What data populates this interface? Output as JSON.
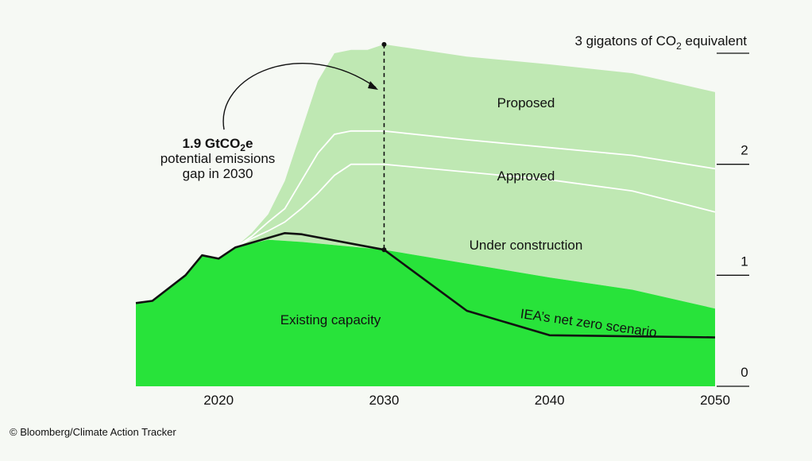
{
  "chart_data": {
    "type": "area",
    "unit_label_prefix": "3 gigatons of CO",
    "unit_label_sub": "2",
    "unit_label_suffix": " equivalent",
    "x_ticks": [
      2020,
      2030,
      2040,
      2050
    ],
    "y_ticks": [
      0,
      1,
      2,
      3
    ],
    "xlim": [
      2015,
      2050
    ],
    "ylim": [
      0,
      3
    ],
    "stack_labels": {
      "existing": "Existing capacity",
      "under_construction": "Under construction",
      "approved": "Approved",
      "proposed": "Proposed"
    },
    "series": [
      {
        "name": "Existing capacity",
        "x": [
          2015,
          2016,
          2018,
          2019,
          2020,
          2021,
          2023,
          2024,
          2025,
          2030,
          2040,
          2045,
          2050
        ],
        "y": [
          0.75,
          0.77,
          1.0,
          1.18,
          1.15,
          1.25,
          1.32,
          1.31,
          1.3,
          1.23,
          0.98,
          0.87,
          0.7
        ]
      },
      {
        "name": "Under construction (top of stack)",
        "x": [
          2020,
          2021,
          2022,
          2023,
          2024,
          2025,
          2026,
          2027,
          2028,
          2030,
          2040,
          2045,
          2050
        ],
        "y": [
          1.15,
          1.25,
          1.33,
          1.4,
          1.48,
          1.6,
          1.74,
          1.9,
          2.0,
          2.0,
          1.86,
          1.76,
          1.57
        ]
      },
      {
        "name": "Approved (top of stack)",
        "x": [
          2020,
          2021,
          2022,
          2023,
          2024,
          2025,
          2026,
          2027,
          2028,
          2029,
          2030,
          2035,
          2040,
          2045,
          2050
        ],
        "y": [
          1.15,
          1.25,
          1.35,
          1.48,
          1.6,
          1.85,
          2.1,
          2.27,
          2.3,
          2.3,
          2.3,
          2.22,
          2.15,
          2.08,
          1.96
        ]
      },
      {
        "name": "Proposed (top of stack)",
        "x": [
          2020,
          2021,
          2022,
          2023,
          2024,
          2025,
          2026,
          2027,
          2028,
          2029,
          2030,
          2035,
          2040,
          2045,
          2050
        ],
        "y": [
          1.15,
          1.25,
          1.38,
          1.55,
          1.85,
          2.3,
          2.75,
          3.0,
          3.03,
          3.03,
          3.08,
          2.97,
          2.9,
          2.82,
          2.65
        ]
      },
      {
        "name": "IEA's net zero scenario",
        "x": [
          2015,
          2016,
          2018,
          2019,
          2020,
          2021,
          2024,
          2025,
          2030,
          2035,
          2040,
          2050
        ],
        "y": [
          0.75,
          0.77,
          1.0,
          1.18,
          1.15,
          1.25,
          1.38,
          1.37,
          1.23,
          0.68,
          0.46,
          0.44
        ]
      }
    ],
    "annotation": {
      "bold_prefix": "1.9 GtCO",
      "bold_sub": "2",
      "bold_suffix": "e",
      "line2": "potential emissions",
      "line3": "gap in 2030",
      "gap_year": 2030,
      "gap_low": 1.23,
      "gap_high": 3.08
    },
    "scenario_label": "IEA’s net zero scenario",
    "colors": {
      "background": "#f6f9f4",
      "existing": "#28e33a",
      "pipeline": "#bfe8b3",
      "divider": "#ffffff",
      "line": "#111111"
    }
  },
  "credit": "© Bloomberg/Climate Action Tracker"
}
